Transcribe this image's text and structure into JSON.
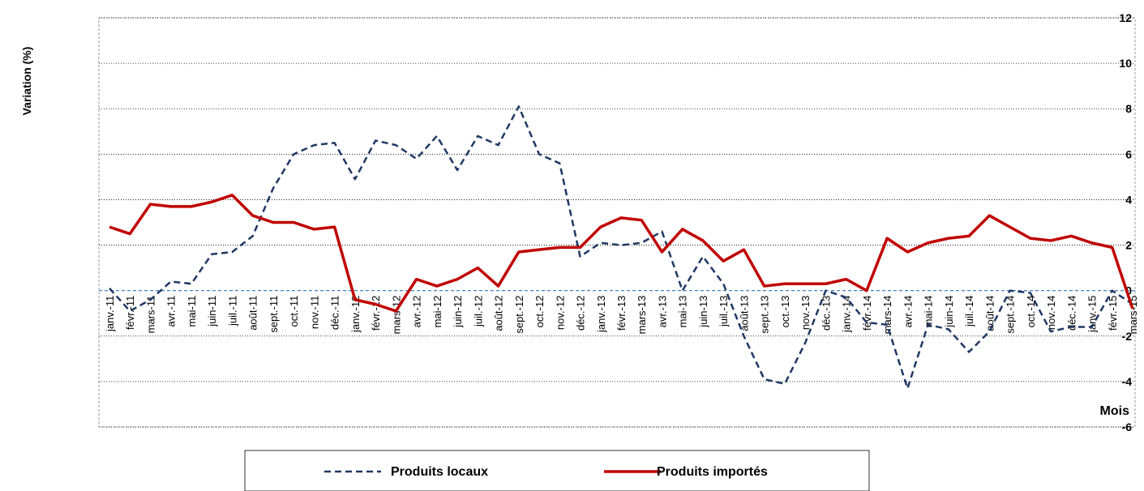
{
  "chart_data": {
    "type": "line",
    "y_label": "Variation (%)",
    "x_label": "Mois",
    "categories": [
      "janv.-11",
      "févr.-11",
      "mars-11",
      "avr.-11",
      "mai-11",
      "juin-11",
      "juil.-11",
      "août-11",
      "sept.-11",
      "oct.-11",
      "nov.-11",
      "déc.-11",
      "janv.-12",
      "févr.-12",
      "mars-12",
      "avr.-12",
      "mai-12",
      "juin-12",
      "juil.-12",
      "août-12",
      "sept.-12",
      "oct.-12",
      "nov.-12",
      "déc.-12",
      "janv.-13",
      "févr.-13",
      "mars-13",
      "avr.-13",
      "mai-13",
      "juin-13",
      "juil.-13",
      "août-13",
      "sept.-13",
      "oct.-13",
      "nov.-13",
      "déc.-13",
      "janv.-14",
      "févr.-14",
      "mars-14",
      "avr.-14",
      "mai-14",
      "juin-14",
      "juil.-14",
      "août-14",
      "sept.-14",
      "oct.-14",
      "nov.-14",
      "déc.-14",
      "janv.-15",
      "févr.-15",
      "mars-15"
    ],
    "series": [
      {
        "name": "Produits locaux",
        "color": "#1f3864",
        "dashed": true,
        "values": [
          0.1,
          -0.9,
          -0.4,
          0.4,
          0.3,
          1.6,
          1.7,
          2.4,
          4.5,
          6.0,
          6.4,
          6.5,
          4.9,
          6.6,
          6.4,
          5.8,
          6.8,
          5.3,
          6.8,
          6.4,
          8.1,
          6.0,
          5.6,
          1.5,
          2.1,
          2.0,
          2.1,
          2.6,
          0.0,
          1.5,
          0.3,
          -2.0,
          -3.9,
          -4.1,
          -2.3,
          0.0,
          -0.3,
          -1.4,
          -1.5,
          -4.3,
          -1.5,
          -1.7,
          -2.7,
          -1.8,
          0.0,
          -0.1,
          -1.8,
          -1.6,
          -1.6,
          0.0,
          -0.6
        ]
      },
      {
        "name": "Produits importés",
        "color": "#c00000",
        "dashed": false,
        "values": [
          2.8,
          2.5,
          3.8,
          3.7,
          3.7,
          3.9,
          4.2,
          3.3,
          3.0,
          3.0,
          2.7,
          2.8,
          -0.4,
          -0.6,
          -0.9,
          0.5,
          0.2,
          0.5,
          1.0,
          0.2,
          1.7,
          1.8,
          1.9,
          1.9,
          2.8,
          3.2,
          3.1,
          1.7,
          2.7,
          2.2,
          1.3,
          1.8,
          0.2,
          0.3,
          0.3,
          0.3,
          0.5,
          0.0,
          2.3,
          1.7,
          2.1,
          2.3,
          2.4,
          3.3,
          2.8,
          2.3,
          2.2,
          2.4,
          2.1,
          1.9,
          -0.8
        ]
      }
    ],
    "ylim": [
      -6,
      12
    ],
    "yticks": [
      -6,
      -4,
      -2,
      0,
      2,
      4,
      6,
      8,
      10,
      12
    ],
    "grid": true,
    "legend": "bottom"
  }
}
